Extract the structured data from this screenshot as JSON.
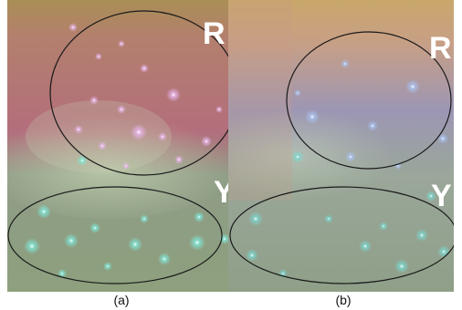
{
  "panels": [
    {
      "caption": "(a)",
      "region_upper_label": "R",
      "region_lower_label": "Y"
    },
    {
      "caption": "(b)",
      "region_upper_label": "R",
      "region_lower_label": "Y"
    }
  ],
  "colors": {
    "panel_a_top": "#b8836a",
    "panel_a_upper_region": "#b86a78",
    "panel_a_lower_region": "#9fae8a",
    "panel_b_top": "#c7a27e",
    "panel_b_upper_region": "#8e96b8",
    "panel_b_lower_region": "#94ab96",
    "outline": "#1a1a1a",
    "label": "#ffffff"
  }
}
